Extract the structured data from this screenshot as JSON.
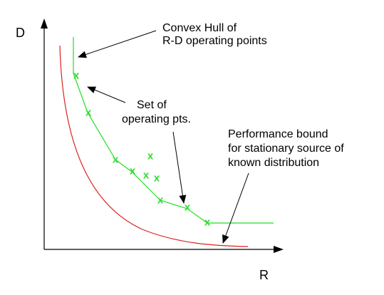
{
  "axes": {
    "y_label": "D",
    "x_label": "R"
  },
  "annotations": {
    "convex_hull": [
      "Convex Hull of",
      "R-D operating points"
    ],
    "operating_points": [
      "Set of",
      "operating pts."
    ],
    "performance_bound": [
      "Performance bound",
      "for stationary source of",
      "known distribution"
    ]
  },
  "point_marker": "x",
  "colors": {
    "axis": "#000000",
    "hull": "#22dd22",
    "points": "#33dd33",
    "bound": "#dd2222",
    "arrows": "#000000"
  }
}
